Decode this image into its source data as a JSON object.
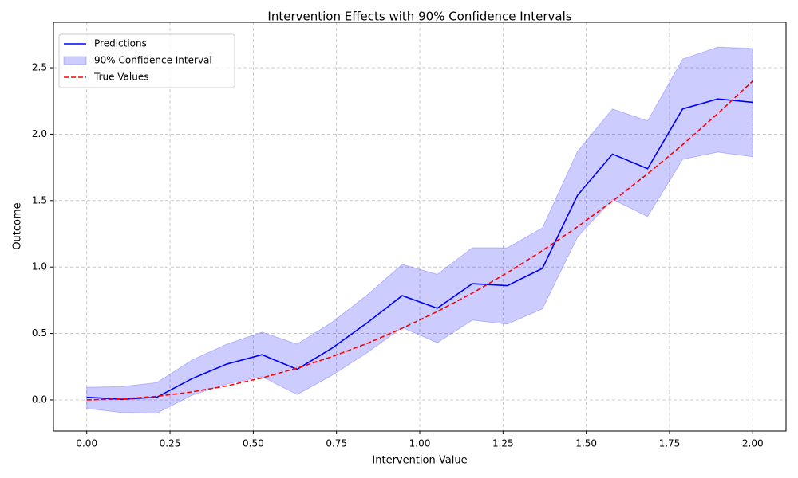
{
  "chart_data": {
    "type": "line",
    "title": "Intervention Effects with 90% Confidence Intervals",
    "xlabel": "Intervention Value",
    "ylabel": "Outcome",
    "x": [
      0,
      0.1053,
      0.2105,
      0.3158,
      0.4211,
      0.5263,
      0.6316,
      0.7368,
      0.8421,
      0.9474,
      1.0526,
      1.1579,
      1.2632,
      1.3684,
      1.4737,
      1.5789,
      1.6842,
      1.7895,
      1.8947,
      2.0
    ],
    "series": [
      {
        "name": "Predictions",
        "color": "#0000ff",
        "style": "solid",
        "values": [
          0.02,
          0.005,
          0.02,
          0.16,
          0.27,
          0.34,
          0.23,
          0.39,
          0.58,
          0.785,
          0.69,
          0.875,
          0.86,
          0.99,
          1.54,
          1.85,
          1.74,
          2.19,
          2.265,
          2.24
        ]
      },
      {
        "name": "True Values",
        "color": "#ff0000",
        "style": "dashed",
        "values": [
          0,
          0.007,
          0.027,
          0.06,
          0.106,
          0.166,
          0.239,
          0.326,
          0.425,
          0.539,
          0.665,
          0.804,
          0.957,
          1.124,
          1.303,
          1.496,
          1.702,
          1.921,
          2.154,
          2.4
        ]
      }
    ],
    "band": {
      "name": "90% Confidence Interval",
      "color": "#0000ff",
      "upper": [
        0.095,
        0.1,
        0.13,
        0.3,
        0.42,
        0.51,
        0.42,
        0.585,
        0.79,
        1.02,
        0.945,
        1.145,
        1.145,
        1.295,
        1.87,
        2.19,
        2.1,
        2.565,
        2.655,
        2.645
      ],
      "lower": [
        -0.065,
        -0.095,
        -0.1,
        0.035,
        0.12,
        0.175,
        0.04,
        0.185,
        0.355,
        0.545,
        0.43,
        0.6,
        0.57,
        0.685,
        1.225,
        1.51,
        1.38,
        1.81,
        1.865,
        1.83
      ]
    },
    "xlim": [
      -0.1,
      2.1
    ],
    "ylim": [
      -0.234,
      2.842
    ],
    "xticks": [
      {
        "value": 0,
        "label": "0.00"
      },
      {
        "value": 0.25,
        "label": "0.25"
      },
      {
        "value": 0.5,
        "label": "0.50"
      },
      {
        "value": 0.75,
        "label": "0.75"
      },
      {
        "value": 1,
        "label": "1.00"
      },
      {
        "value": 1.25,
        "label": "1.25"
      },
      {
        "value": 1.5,
        "label": "1.50"
      },
      {
        "value": 1.75,
        "label": "1.75"
      },
      {
        "value": 2,
        "label": "2.00"
      }
    ],
    "yticks": [
      {
        "value": 0,
        "label": "0.0"
      },
      {
        "value": 0.5,
        "label": "0.5"
      },
      {
        "value": 1,
        "label": "1.0"
      },
      {
        "value": 1.5,
        "label": "1.5"
      },
      {
        "value": 2,
        "label": "2.0"
      },
      {
        "value": 2.5,
        "label": "2.5"
      }
    ],
    "grid": true,
    "legend": "upper left"
  }
}
